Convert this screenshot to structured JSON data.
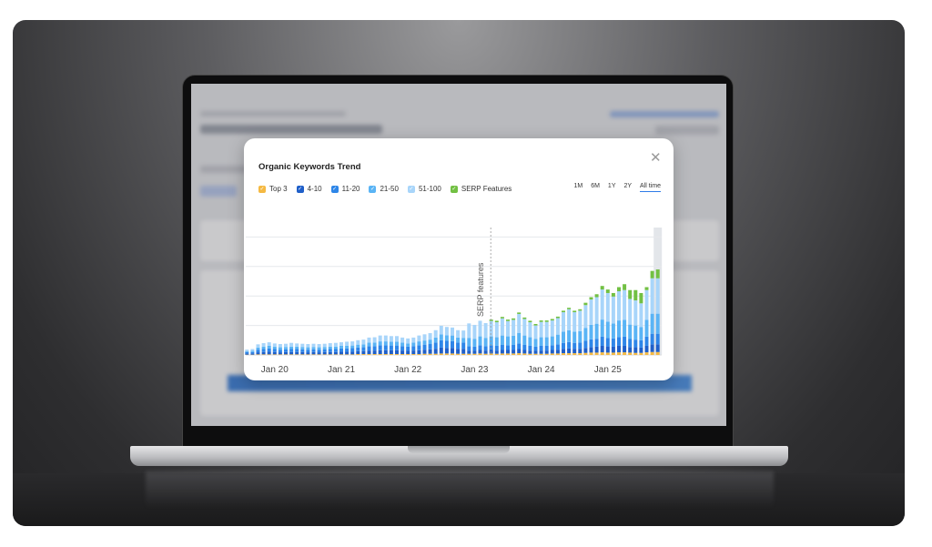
{
  "modal": {
    "close_icon": "close-icon"
  },
  "chart_data": {
    "type": "bar",
    "stacked": true,
    "title": "Organic Keywords Trend",
    "time_ranges": [
      "1M",
      "6M",
      "1Y",
      "2Y",
      "All time"
    ],
    "selected_range": "All time",
    "x_ticks": [
      "Jan 20",
      "Jan 21",
      "Jan 22",
      "Jan 23",
      "Jan 24",
      "Jan 25"
    ],
    "annotation": "SERP features",
    "grid": true,
    "y_axis_labels_shown": false,
    "ylim": [
      0,
      4.3
    ],
    "series": [
      {
        "name": "Top 3",
        "color": "#f5b942",
        "values": [
          0.01,
          0.01,
          0.02,
          0.02,
          0.02,
          0.02,
          0.02,
          0.02,
          0.02,
          0.02,
          0.02,
          0.02,
          0.02,
          0.02,
          0.02,
          0.02,
          0.02,
          0.02,
          0.02,
          0.02,
          0.03,
          0.03,
          0.03,
          0.03,
          0.03,
          0.03,
          0.03,
          0.03,
          0.03,
          0.03,
          0.03,
          0.03,
          0.04,
          0.04,
          0.04,
          0.05,
          0.05,
          0.05,
          0.04,
          0.04,
          0.04,
          0.04,
          0.05,
          0.04,
          0.05,
          0.04,
          0.05,
          0.05,
          0.05,
          0.06,
          0.05,
          0.04,
          0.04,
          0.04,
          0.04,
          0.05,
          0.05,
          0.06,
          0.06,
          0.06,
          0.06,
          0.07,
          0.08,
          0.08,
          0.09,
          0.08,
          0.08,
          0.09,
          0.09,
          0.08,
          0.07,
          0.07,
          0.09,
          0.1,
          0.1
        ]
      },
      {
        "name": "4-10",
        "color": "#1f5fc9",
        "values": [
          0.04,
          0.04,
          0.07,
          0.08,
          0.09,
          0.08,
          0.07,
          0.08,
          0.08,
          0.08,
          0.08,
          0.07,
          0.08,
          0.07,
          0.08,
          0.08,
          0.08,
          0.09,
          0.09,
          0.09,
          0.1,
          0.1,
          0.12,
          0.12,
          0.13,
          0.13,
          0.13,
          0.13,
          0.12,
          0.11,
          0.12,
          0.13,
          0.14,
          0.15,
          0.17,
          0.2,
          0.19,
          0.19,
          0.17,
          0.17,
          0.11,
          0.1,
          0.12,
          0.11,
          0.12,
          0.11,
          0.12,
          0.12,
          0.12,
          0.14,
          0.12,
          0.11,
          0.1,
          0.11,
          0.11,
          0.12,
          0.13,
          0.15,
          0.16,
          0.15,
          0.15,
          0.17,
          0.19,
          0.2,
          0.22,
          0.21,
          0.2,
          0.22,
          0.22,
          0.19,
          0.19,
          0.18,
          0.22,
          0.26,
          0.26
        ]
      },
      {
        "name": "11-20",
        "color": "#2e86e8",
        "values": [
          0.05,
          0.05,
          0.09,
          0.1,
          0.11,
          0.1,
          0.09,
          0.09,
          0.1,
          0.1,
          0.09,
          0.09,
          0.09,
          0.09,
          0.09,
          0.1,
          0.1,
          0.11,
          0.11,
          0.12,
          0.12,
          0.13,
          0.15,
          0.15,
          0.17,
          0.17,
          0.16,
          0.16,
          0.15,
          0.14,
          0.15,
          0.17,
          0.17,
          0.18,
          0.21,
          0.25,
          0.24,
          0.23,
          0.21,
          0.21,
          0.15,
          0.14,
          0.16,
          0.15,
          0.16,
          0.16,
          0.17,
          0.16,
          0.17,
          0.19,
          0.17,
          0.16,
          0.14,
          0.16,
          0.16,
          0.16,
          0.18,
          0.2,
          0.22,
          0.2,
          0.21,
          0.24,
          0.26,
          0.27,
          0.31,
          0.29,
          0.28,
          0.3,
          0.31,
          0.27,
          0.26,
          0.25,
          0.31,
          0.36,
          0.36
        ]
      },
      {
        "name": "21-50",
        "color": "#5ab4f5",
        "values": [
          0.03,
          0.04,
          0.07,
          0.08,
          0.09,
          0.08,
          0.08,
          0.08,
          0.08,
          0.08,
          0.08,
          0.08,
          0.08,
          0.08,
          0.08,
          0.08,
          0.08,
          0.09,
          0.09,
          0.09,
          0.1,
          0.1,
          0.12,
          0.12,
          0.13,
          0.13,
          0.13,
          0.13,
          0.12,
          0.11,
          0.12,
          0.13,
          0.14,
          0.15,
          0.17,
          0.2,
          0.19,
          0.19,
          0.17,
          0.16,
          0.28,
          0.27,
          0.3,
          0.28,
          0.3,
          0.29,
          0.32,
          0.3,
          0.31,
          0.36,
          0.32,
          0.29,
          0.26,
          0.29,
          0.29,
          0.3,
          0.33,
          0.38,
          0.4,
          0.38,
          0.39,
          0.44,
          0.49,
          0.51,
          0.58,
          0.55,
          0.51,
          0.56,
          0.57,
          0.49,
          0.48,
          0.45,
          0.57,
          0.68,
          0.68
        ]
      },
      {
        "name": "51-100",
        "color": "#a8d5fa",
        "values": [
          0.05,
          0.06,
          0.11,
          0.12,
          0.12,
          0.11,
          0.11,
          0.11,
          0.13,
          0.11,
          0.11,
          0.11,
          0.11,
          0.11,
          0.11,
          0.12,
          0.13,
          0.12,
          0.14,
          0.14,
          0.15,
          0.16,
          0.17,
          0.18,
          0.2,
          0.2,
          0.19,
          0.19,
          0.17,
          0.17,
          0.17,
          0.2,
          0.21,
          0.22,
          0.25,
          0.29,
          0.28,
          0.27,
          0.25,
          0.25,
          0.49,
          0.47,
          0.53,
          0.5,
          0.52,
          0.51,
          0.58,
          0.52,
          0.54,
          0.64,
          0.56,
          0.51,
          0.46,
          0.52,
          0.52,
          0.54,
          0.56,
          0.66,
          0.71,
          0.66,
          0.69,
          0.77,
          0.86,
          0.9,
          1.02,
          0.97,
          0.91,
          0.99,
          1.01,
          0.87,
          0.85,
          0.8,
          1.01,
          1.2,
          1.2
        ]
      },
      {
        "name": "SERP Features",
        "color": "#72c043",
        "values": [
          0,
          0,
          0,
          0,
          0,
          0,
          0,
          0,
          0,
          0,
          0,
          0,
          0,
          0,
          0,
          0,
          0,
          0,
          0,
          0,
          0,
          0,
          0,
          0,
          0,
          0,
          0,
          0,
          0,
          0,
          0,
          0,
          0,
          0,
          0,
          0,
          0,
          0,
          0,
          0,
          0,
          0,
          0,
          0,
          0.05,
          0.05,
          0.05,
          0.05,
          0.05,
          0.05,
          0.05,
          0.05,
          0.05,
          0.05,
          0.05,
          0.05,
          0.05,
          0.05,
          0.05,
          0.05,
          0.05,
          0.08,
          0.08,
          0.1,
          0.12,
          0.12,
          0.12,
          0.14,
          0.2,
          0.3,
          0.35,
          0.35,
          0.1,
          0.25,
          0.3
        ]
      }
    ]
  }
}
